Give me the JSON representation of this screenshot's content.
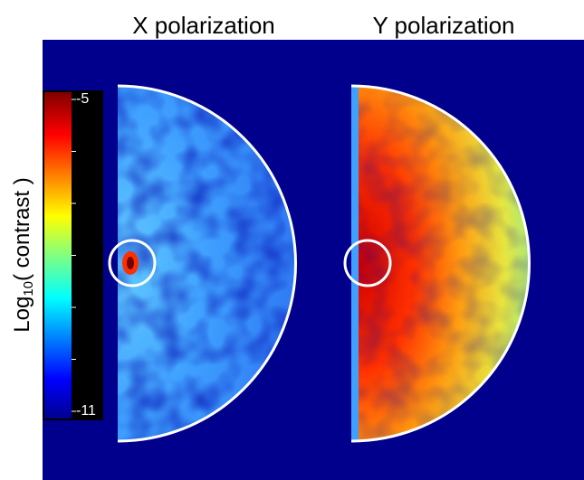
{
  "panels": [
    {
      "title": "X polarization"
    },
    {
      "title": "Y polarization"
    }
  ],
  "colorbar": {
    "label_parts": [
      "Log",
      "10",
      "( contrast )"
    ],
    "lim": [
      -11,
      -5
    ],
    "ticks": [
      -5,
      -11
    ],
    "minor_ticks": [
      -6,
      -7,
      -8,
      -9,
      -10
    ]
  }
}
